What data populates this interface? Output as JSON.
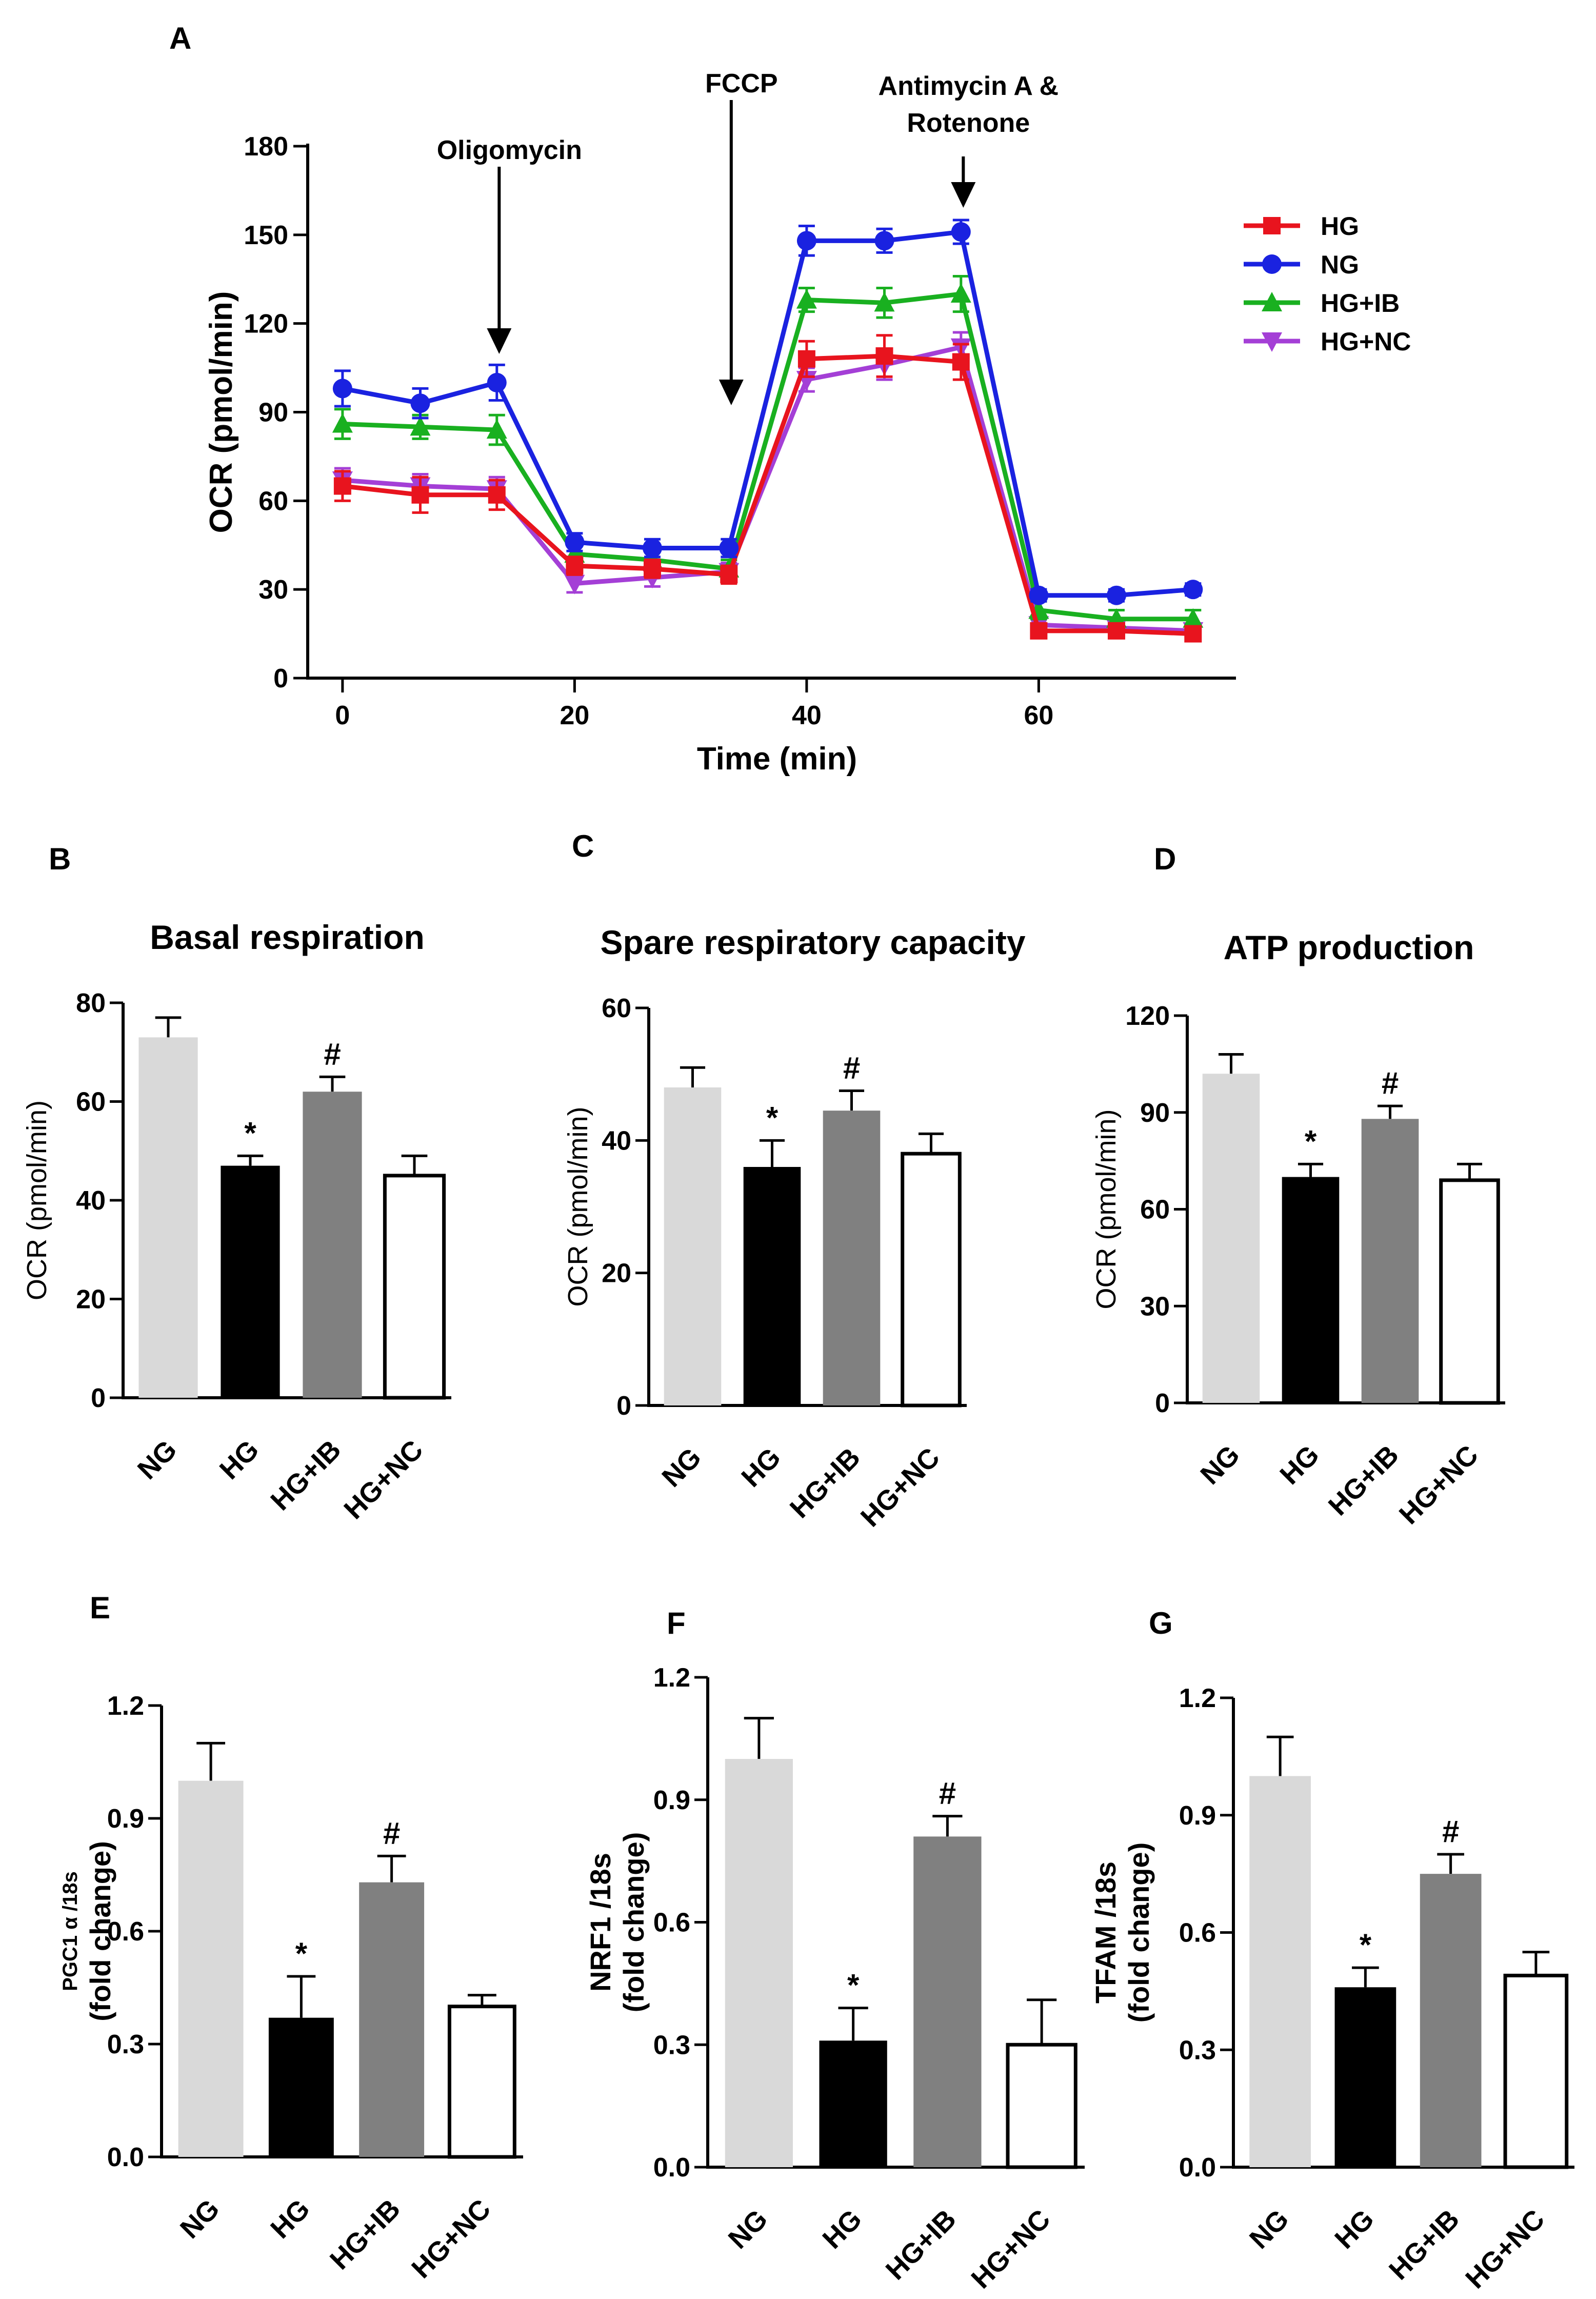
{
  "chart_data": [
    {
      "type": "line",
      "panel": "A",
      "xlabel": "Time (min)",
      "ylabel": "OCR (pmol/min)",
      "xlim": [
        -3,
        77
      ],
      "ylim": [
        0,
        180
      ],
      "xticks": [
        0,
        20,
        40,
        60
      ],
      "yticks": [
        0,
        30,
        60,
        90,
        120,
        150,
        180
      ],
      "x": [
        0,
        6.7,
        13.3,
        20,
        26.7,
        33.3,
        40,
        46.7,
        53.3,
        60,
        66.7,
        73.3
      ],
      "series": [
        {
          "name": "HG",
          "color": "#e8141e",
          "marker": "square",
          "values": [
            65,
            62,
            62,
            38,
            37,
            35,
            108,
            109,
            107,
            16,
            16,
            15
          ],
          "errors": [
            5,
            6,
            5,
            3,
            3,
            3,
            6,
            7,
            6,
            2,
            2,
            2
          ]
        },
        {
          "name": "NG",
          "color": "#1a22e0",
          "marker": "circle",
          "values": [
            98,
            93,
            100,
            46,
            44,
            44,
            148,
            148,
            151,
            28,
            28,
            30
          ],
          "errors": [
            6,
            5,
            6,
            3,
            3,
            3,
            5,
            4,
            4,
            2,
            2,
            2
          ]
        },
        {
          "name": "HG+IB",
          "color": "#19b020",
          "marker": "triangle",
          "values": [
            86,
            85,
            84,
            42,
            40,
            37,
            128,
            127,
            130,
            23,
            20,
            20
          ],
          "errors": [
            5,
            4,
            5,
            3,
            3,
            3,
            4,
            5,
            6,
            3,
            3,
            3
          ]
        },
        {
          "name": "HG+NC",
          "color": "#a43fd6",
          "marker": "triangle-down",
          "values": [
            67,
            65,
            64,
            32,
            34,
            36,
            101,
            106,
            112,
            18,
            17,
            16
          ],
          "errors": [
            4,
            4,
            4,
            3,
            3,
            3,
            4,
            5,
            5,
            2,
            2,
            2
          ]
        }
      ],
      "annotations": [
        {
          "label": "Oligomycin",
          "x": 13.5
        },
        {
          "label": "FCCP",
          "x": 33.5
        },
        {
          "label_lines": [
            "Antimycin A &",
            "Rotenone"
          ],
          "x": 53.5
        }
      ]
    },
    {
      "type": "bar",
      "panel": "B",
      "title": "Basal respiration",
      "ylabel": "OCR (pmol/min)",
      "ylim": [
        0,
        80
      ],
      "yticks": [
        0,
        20,
        40,
        60,
        80
      ],
      "categories": [
        "NG",
        "HG",
        "HG+IB",
        "HG+NC"
      ],
      "values": [
        73,
        47,
        62,
        45
      ],
      "errors": [
        4,
        2,
        3,
        4
      ],
      "significance": [
        "",
        "*",
        "#",
        ""
      ]
    },
    {
      "type": "bar",
      "panel": "C",
      "title": "Spare respiratory capacity",
      "ylabel": "OCR (pmol/min)",
      "ylim": [
        0,
        60
      ],
      "yticks": [
        0,
        20,
        40,
        60
      ],
      "categories": [
        "NG",
        "HG",
        "HG+IB",
        "HG+NC"
      ],
      "values": [
        48,
        36,
        44.5,
        38
      ],
      "errors": [
        3,
        4,
        3,
        3
      ],
      "significance": [
        "",
        "*",
        "#",
        ""
      ]
    },
    {
      "type": "bar",
      "panel": "D",
      "title": "ATP production",
      "ylabel": "OCR (pmol/min)",
      "ylim": [
        0,
        120
      ],
      "yticks": [
        0,
        30,
        60,
        90,
        120
      ],
      "categories": [
        "NG",
        "HG",
        "HG+IB",
        "HG+NC"
      ],
      "values": [
        102,
        70,
        88,
        69
      ],
      "errors": [
        6,
        4,
        4,
        5
      ],
      "significance": [
        "",
        "*",
        "#",
        ""
      ]
    },
    {
      "type": "bar",
      "panel": "E",
      "title": "",
      "ylabel_lines": [
        "PGC1 α /18s",
        "(fold change)"
      ],
      "ylim": [
        0,
        1.2
      ],
      "yticks": [
        "0.0",
        "0.3",
        "0.6",
        "0.9",
        "1.2"
      ],
      "categories": [
        "NG",
        "HG",
        "HG+IB",
        "HG+NC"
      ],
      "values": [
        1.0,
        0.37,
        0.73,
        0.4
      ],
      "errors": [
        0.1,
        0.11,
        0.07,
        0.03
      ],
      "significance": [
        "",
        "*",
        "#",
        ""
      ]
    },
    {
      "type": "bar",
      "panel": "F",
      "title": "",
      "ylabel_lines": [
        "NRF1 /18s",
        "(fold change)"
      ],
      "ylim": [
        0,
        1.2
      ],
      "yticks": [
        "0.0",
        "0.3",
        "0.6",
        "0.9",
        "1.2"
      ],
      "categories": [
        "NG",
        "HG",
        "HG+IB",
        "HG+NC"
      ],
      "values": [
        1.0,
        0.31,
        0.81,
        0.3
      ],
      "errors": [
        0.1,
        0.08,
        0.05,
        0.11
      ],
      "significance": [
        "",
        "*",
        "#",
        ""
      ]
    },
    {
      "type": "bar",
      "panel": "G",
      "title": "",
      "ylabel_lines": [
        "TFAM /18s",
        "(fold change)"
      ],
      "ylim": [
        0,
        1.2
      ],
      "yticks": [
        "0.0",
        "0.3",
        "0.6",
        "0.9",
        "1.2"
      ],
      "categories": [
        "NG",
        "HG",
        "HG+IB",
        "HG+NC"
      ],
      "values": [
        1.0,
        0.46,
        0.75,
        0.49
      ],
      "errors": [
        0.1,
        0.05,
        0.05,
        0.06
      ],
      "significance": [
        "",
        "*",
        "#",
        ""
      ]
    }
  ],
  "colors": {
    "NG_bar": "#d9d9d9",
    "HG_bar": "#000000",
    "HG+IB_bar": "#808080",
    "HG+NC_bar": "#ffffff",
    "axis": "#000000"
  }
}
